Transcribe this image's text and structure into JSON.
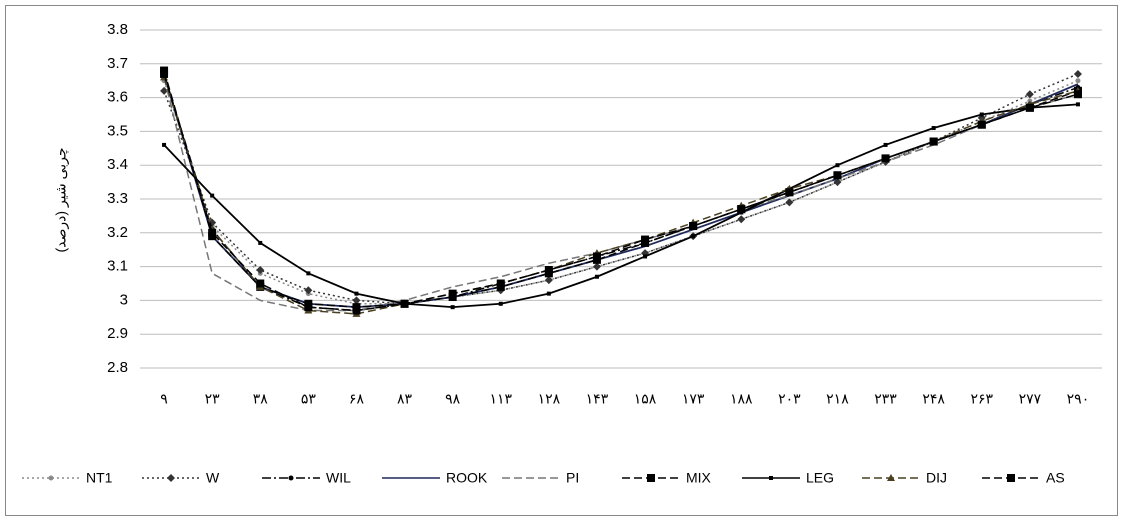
{
  "chart_data": {
    "type": "line",
    "y_label": "چربی شیر (درصد)",
    "categories": [
      "۹",
      "۲۳",
      "۳۸",
      "۵۳",
      "۶۸",
      "۸۳",
      "۹۸",
      "۱۱۳",
      "۱۲۸",
      "۱۴۳",
      "۱۵۸",
      "۱۷۳",
      "۱۸۸",
      "۲۰۳",
      "۲۱۸",
      "۲۳۳",
      "۲۴۸",
      "۲۶۳",
      "۲۷۷",
      "۲۹۰"
    ],
    "ylim": [
      2.8,
      3.8
    ],
    "yticks": [
      2.8,
      2.9,
      3,
      3.1,
      3.2,
      3.3,
      3.4,
      3.5,
      3.6,
      3.7,
      3.8
    ],
    "grid": true,
    "legend": "bottom",
    "series": [
      {
        "name": "NT1",
        "color": "#8a8a8a",
        "line_style": "dotted",
        "marker": "circle",
        "values": [
          3.65,
          3.22,
          3.08,
          3.02,
          2.99,
          2.99,
          3.01,
          3.03,
          3.06,
          3.1,
          3.14,
          3.19,
          3.24,
          3.29,
          3.35,
          3.41,
          3.47,
          3.53,
          3.59,
          3.65
        ]
      },
      {
        "name": "W",
        "color": "#333333",
        "line_style": "dotted",
        "marker": "diamond",
        "values": [
          3.62,
          3.23,
          3.09,
          3.03,
          3.0,
          2.99,
          3.01,
          3.03,
          3.06,
          3.1,
          3.14,
          3.19,
          3.24,
          3.29,
          3.35,
          3.41,
          3.47,
          3.54,
          3.61,
          3.67
        ]
      },
      {
        "name": "WIL",
        "color": "#000000",
        "line_style": "dash-dot",
        "marker": "circle",
        "values": [
          3.67,
          3.21,
          3.04,
          2.98,
          2.97,
          2.99,
          3.01,
          3.05,
          3.09,
          3.13,
          3.17,
          3.22,
          3.27,
          3.32,
          3.37,
          3.42,
          3.47,
          3.52,
          3.58,
          3.63
        ]
      },
      {
        "name": "ROOK",
        "color": "#1f2a5a",
        "line_style": "solid",
        "marker": "none",
        "values": [
          3.67,
          3.19,
          3.04,
          2.99,
          2.98,
          2.99,
          3.01,
          3.04,
          3.08,
          3.12,
          3.16,
          3.21,
          3.26,
          3.31,
          3.36,
          3.42,
          3.47,
          3.52,
          3.58,
          3.64
        ]
      },
      {
        "name": "PI",
        "color": "#777777",
        "line_style": "dashed",
        "marker": "none",
        "values": [
          3.66,
          3.08,
          3.0,
          2.97,
          2.97,
          3.0,
          3.04,
          3.07,
          3.11,
          3.14,
          3.18,
          3.22,
          3.27,
          3.31,
          3.36,
          3.41,
          3.46,
          3.52,
          3.57,
          3.61
        ]
      },
      {
        "name": "MIX",
        "color": "#000000",
        "line_style": "dashed",
        "marker": "square",
        "values": [
          3.68,
          3.19,
          3.04,
          2.99,
          2.98,
          2.99,
          3.01,
          3.04,
          3.08,
          3.12,
          3.17,
          3.22,
          3.27,
          3.32,
          3.37,
          3.42,
          3.47,
          3.52,
          3.57,
          3.62
        ]
      },
      {
        "name": "LEG",
        "color": "#000000",
        "line_style": "solid",
        "marker": "small-square",
        "values": [
          3.46,
          3.31,
          3.17,
          3.08,
          3.02,
          2.99,
          2.98,
          2.99,
          3.02,
          3.07,
          3.13,
          3.19,
          3.26,
          3.33,
          3.4,
          3.46,
          3.51,
          3.55,
          3.57,
          3.58
        ]
      },
      {
        "name": "DIJ",
        "color": "#4a4020",
        "line_style": "dashed",
        "marker": "triangle",
        "values": [
          3.66,
          3.21,
          3.04,
          2.97,
          2.96,
          2.99,
          3.02,
          3.05,
          3.09,
          3.14,
          3.18,
          3.23,
          3.28,
          3.33,
          3.37,
          3.42,
          3.47,
          3.53,
          3.58,
          3.62
        ]
      },
      {
        "name": "AS",
        "color": "#000000",
        "line_style": "dashed",
        "marker": "square",
        "values": [
          3.67,
          3.2,
          3.05,
          2.98,
          2.97,
          2.99,
          3.02,
          3.05,
          3.09,
          3.13,
          3.18,
          3.22,
          3.27,
          3.32,
          3.37,
          3.42,
          3.47,
          3.52,
          3.57,
          3.61
        ]
      }
    ]
  }
}
